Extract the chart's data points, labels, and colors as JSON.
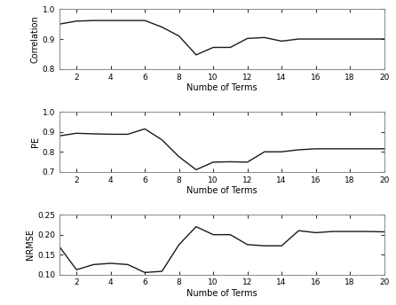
{
  "x": [
    1,
    2,
    3,
    4,
    5,
    6,
    7,
    8,
    9,
    10,
    11,
    12,
    13,
    14,
    15,
    16,
    17,
    18,
    19,
    20
  ],
  "corr": [
    0.95,
    0.96,
    0.962,
    0.962,
    0.962,
    0.962,
    0.94,
    0.91,
    0.847,
    0.872,
    0.872,
    0.902,
    0.905,
    0.893,
    0.9,
    0.9,
    0.9,
    0.9,
    0.9,
    0.9
  ],
  "pe": [
    0.88,
    0.893,
    0.89,
    0.888,
    0.888,
    0.915,
    0.86,
    0.775,
    0.71,
    0.748,
    0.75,
    0.748,
    0.8,
    0.8,
    0.81,
    0.815,
    0.815,
    0.815,
    0.815,
    0.815
  ],
  "nrmse": [
    0.17,
    0.112,
    0.125,
    0.128,
    0.125,
    0.105,
    0.108,
    0.175,
    0.22,
    0.2,
    0.2,
    0.175,
    0.172,
    0.172,
    0.21,
    0.205,
    0.208,
    0.208,
    0.208,
    0.207
  ],
  "corr_ylim": [
    0.8,
    1.0
  ],
  "pe_ylim": [
    0.7,
    1.0
  ],
  "nrmse_ylim": [
    0.1,
    0.25
  ],
  "corr_yticks": [
    0.8,
    0.9,
    1.0
  ],
  "pe_yticks": [
    0.7,
    0.8,
    0.9,
    1.0
  ],
  "nrmse_yticks": [
    0.1,
    0.15,
    0.2,
    0.25
  ],
  "xlabel": "Numbe of Terms",
  "ylabel_corr": "Correlation",
  "ylabel_pe": "PE",
  "ylabel_nrmse": "NRMSE",
  "line_color": "#1a1a1a",
  "line_width": 1.0,
  "xticks": [
    2,
    4,
    6,
    8,
    10,
    12,
    14,
    16,
    18,
    20
  ],
  "bg_color": "#ffffff",
  "fig_bg_color": "#ffffff",
  "spine_color": "#888888",
  "tick_color": "#333333"
}
